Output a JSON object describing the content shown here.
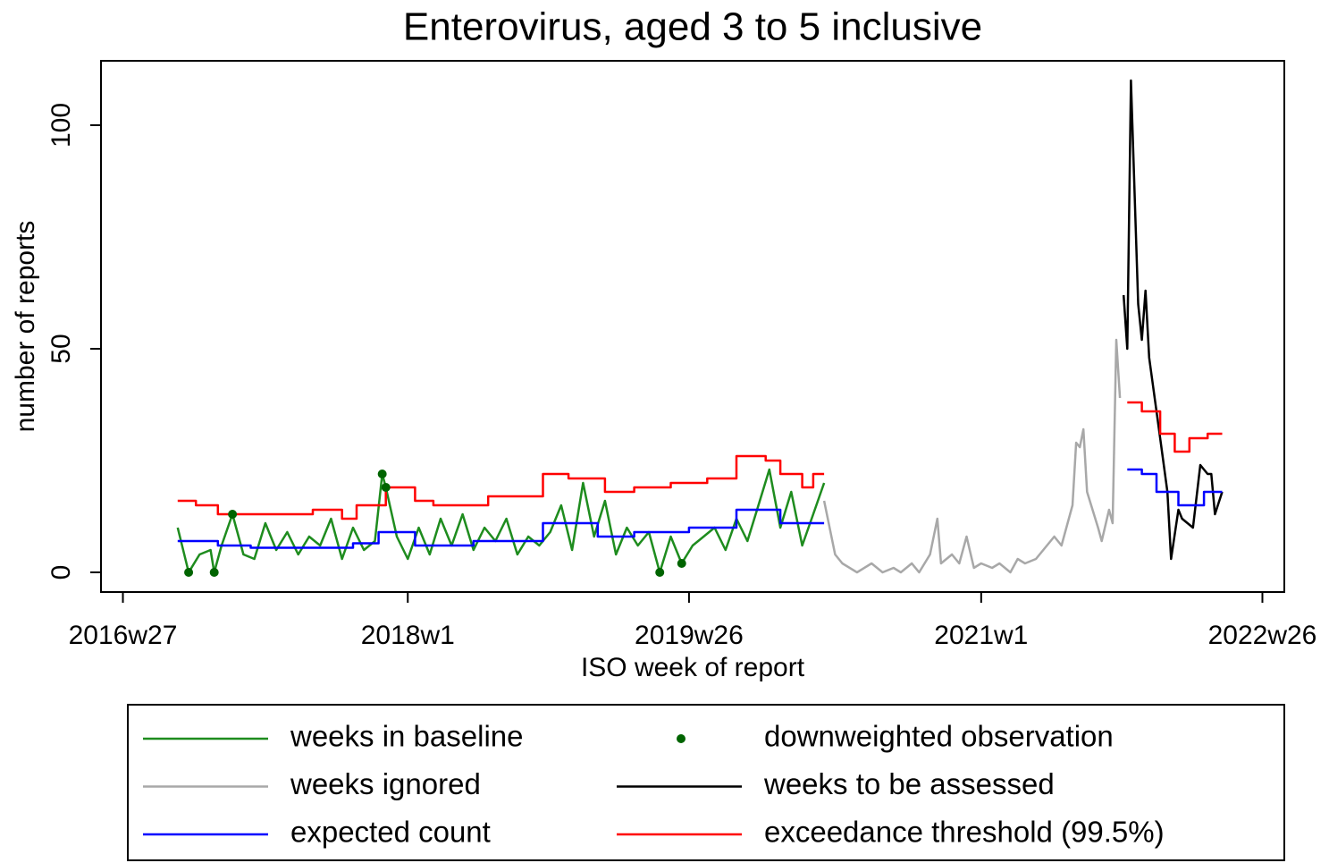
{
  "chart_data": {
    "type": "line",
    "title": "Enterovirus, aged 3 to 5 inclusive",
    "x_label": "ISO week of report",
    "y_label": "number of reports",
    "xlim": [
      -6,
      318
    ],
    "ylim": [
      -4.4,
      114.4
    ],
    "xticks": [
      {
        "value": 0,
        "label": "2016w27"
      },
      {
        "value": 78,
        "label": "2018w1"
      },
      {
        "value": 155,
        "label": "2019w26"
      },
      {
        "value": 235,
        "label": "2021w1"
      },
      {
        "value": 312,
        "label": "2022w26"
      }
    ],
    "yticks": [
      0,
      50,
      100
    ],
    "grid": false,
    "series": [
      {
        "name": "weeks in baseline",
        "color": "#1e8c1e",
        "style": "line",
        "x": [
          15,
          18,
          21,
          24,
          25,
          27,
          30,
          33,
          36,
          39,
          42,
          45,
          48,
          51,
          54,
          57,
          60,
          63,
          66,
          69,
          71,
          72,
          75,
          78,
          81,
          84,
          87,
          90,
          93,
          96,
          99,
          102,
          105,
          108,
          111,
          114,
          117,
          120,
          123,
          126,
          129,
          132,
          135,
          138,
          141,
          144,
          147,
          150,
          153,
          156,
          159,
          162,
          165,
          168,
          171,
          174,
          177,
          180,
          183,
          186,
          189,
          192
        ],
        "values": [
          10,
          0,
          4,
          5,
          0,
          6,
          13,
          4,
          3,
          11,
          5,
          9,
          4,
          8,
          6,
          12,
          3,
          10,
          5,
          7,
          22,
          19,
          8,
          3,
          10,
          4,
          12,
          6,
          13,
          5,
          10,
          7,
          12,
          4,
          8,
          6,
          9,
          15,
          5,
          20,
          8,
          16,
          4,
          10,
          6,
          9,
          0,
          8,
          2,
          6,
          8,
          10,
          5,
          12,
          7,
          15,
          23,
          10,
          18,
          6,
          13,
          20
        ]
      },
      {
        "name": "downweighted observation",
        "color": "#006400",
        "style": "points",
        "x": [
          18,
          25,
          30,
          71,
          72,
          147,
          153
        ],
        "values": [
          0,
          0,
          13,
          22,
          19,
          0,
          2
        ]
      },
      {
        "name": "weeks ignored",
        "color": "#a8a8a8",
        "style": "line",
        "x": [
          192,
          195,
          197,
          201,
          205,
          208,
          211,
          213,
          216,
          218,
          221,
          223,
          224,
          227,
          229,
          231,
          233,
          235,
          238,
          240,
          243,
          245,
          247,
          250,
          252,
          255,
          257,
          260,
          261,
          262,
          263,
          264,
          267,
          268,
          270,
          271,
          272,
          273
        ],
        "values": [
          16,
          4,
          2,
          0,
          2,
          0,
          1,
          0,
          2,
          0,
          4,
          12,
          2,
          4,
          2,
          8,
          1,
          2,
          1,
          2,
          0,
          3,
          2,
          3,
          5,
          8,
          6,
          15,
          29,
          28,
          32,
          18,
          10,
          7,
          14,
          11,
          52,
          39
        ]
      },
      {
        "name": "weeks to be assessed",
        "color": "#000000",
        "style": "line",
        "x": [
          274,
          275,
          276,
          278,
          279,
          280,
          281,
          284,
          286,
          287,
          289,
          290,
          293,
          295,
          297,
          298,
          299,
          301
        ],
        "values": [
          62,
          50,
          110,
          60,
          52,
          63,
          48,
          30,
          18,
          3,
          14,
          12,
          10,
          24,
          22,
          22,
          13,
          18
        ]
      },
      {
        "name": "expected count",
        "color": "#0000ff",
        "style": "line",
        "x": [
          15,
          26,
          26,
          35,
          35,
          63,
          63,
          70,
          70,
          80,
          80,
          96,
          96,
          115,
          115,
          130,
          130,
          140,
          140,
          155,
          155,
          168,
          168,
          180,
          180,
          192,
          233,
          275,
          279,
          279,
          283,
          283,
          289,
          289,
          296,
          296,
          301
        ],
        "values": [
          7,
          7,
          6,
          6,
          5.5,
          5.5,
          6.5,
          6.5,
          9,
          9,
          6,
          6,
          7,
          7,
          11,
          11,
          8,
          8,
          9,
          9,
          10,
          10,
          14,
          14,
          11,
          11,
          null,
          23,
          23,
          22,
          22,
          18,
          18,
          15,
          15,
          18,
          18
        ]
      },
      {
        "name": "exceedance threshold (99.5%)",
        "color": "#ff0000",
        "style": "line",
        "x": [
          15,
          20,
          20,
          26,
          26,
          52,
          52,
          60,
          60,
          64,
          64,
          72,
          72,
          80,
          80,
          85,
          85,
          100,
          100,
          115,
          115,
          122,
          122,
          132,
          132,
          140,
          140,
          150,
          150,
          160,
          160,
          168,
          168,
          176,
          176,
          180,
          180,
          186,
          186,
          189,
          189,
          192,
          233,
          275,
          279,
          279,
          284,
          284,
          288,
          288,
          292,
          292,
          297,
          297,
          301
        ],
        "values": [
          16,
          16,
          15,
          15,
          13,
          13,
          14,
          14,
          12,
          12,
          15,
          15,
          19,
          19,
          16,
          16,
          15,
          15,
          17,
          17,
          22,
          22,
          21,
          21,
          18,
          18,
          19,
          19,
          20,
          20,
          21,
          21,
          26,
          26,
          25,
          25,
          22,
          22,
          19,
          19,
          22,
          22,
          null,
          38,
          38,
          36,
          36,
          31,
          31,
          27,
          27,
          30,
          30,
          31,
          31
        ]
      }
    ]
  }
}
